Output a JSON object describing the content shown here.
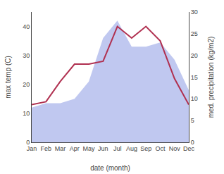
{
  "chart_data": {
    "type": "line",
    "xlabel": "date (month)",
    "ylabel": "max temp (C)",
    "y2label": "med. precipitation (kg/m2)",
    "categories": [
      "Jan",
      "Feb",
      "Mar",
      "Apr",
      "May",
      "Jun",
      "Jul",
      "Aug",
      "Sep",
      "Oct",
      "Nov",
      "Dec"
    ],
    "series": [
      {
        "type": "line",
        "color": "#b03050",
        "values": [
          13,
          14,
          21,
          27,
          27,
          28,
          40,
          36,
          40,
          35,
          22,
          13
        ]
      },
      {
        "type": "area",
        "axis": "y2",
        "color": "#c0c8f0",
        "values": [
          8,
          9,
          9,
          10,
          14,
          24,
          28,
          22,
          22,
          23,
          19,
          12
        ]
      }
    ],
    "ylim": [
      0,
      45
    ],
    "yticks": [
      0,
      10,
      20,
      30,
      40
    ],
    "y2lim": [
      0,
      30
    ],
    "y2ticks": [
      0,
      5,
      10,
      15,
      20,
      25,
      30
    ],
    "grid": false
  }
}
